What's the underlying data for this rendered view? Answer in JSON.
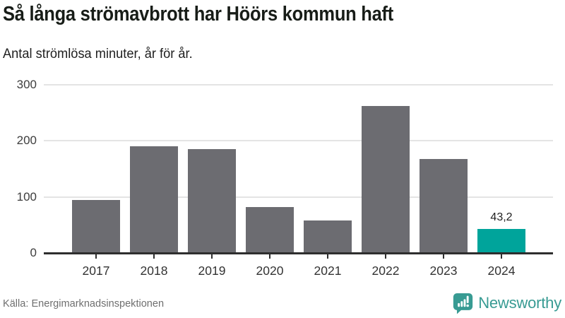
{
  "header": {
    "title": "Så långa strömavbrott har Höörs kommun haft",
    "subtitle": "Antal strömlösa minuter, år för år."
  },
  "chart_data": {
    "type": "bar",
    "title": "Så långa strömavbrott har Höörs kommun haft",
    "subtitle": "Antal strömlösa minuter, år för år.",
    "categories": [
      "2017",
      "2018",
      "2019",
      "2020",
      "2021",
      "2022",
      "2023",
      "2024"
    ],
    "values": [
      95,
      190,
      185,
      82,
      58,
      262,
      168,
      43.2
    ],
    "bar_labels": [
      "",
      "",
      "",
      "",
      "",
      "",
      "",
      "43,2"
    ],
    "xlabel": "",
    "ylabel": "",
    "ylim": [
      0,
      300
    ],
    "yticks": [
      0,
      100,
      200,
      300
    ],
    "grid": true,
    "legend": "none",
    "bar_color_default": "#6C6C71",
    "bar_color_highlight": "#00A49B",
    "highlight_index": 7
  },
  "footer": {
    "source": "Källa: Energimarknadsinspektionen",
    "brand": "Newsworthy",
    "brand_color": "#389B93",
    "logo_icon": "newsworthy-bubble-chart-icon"
  }
}
